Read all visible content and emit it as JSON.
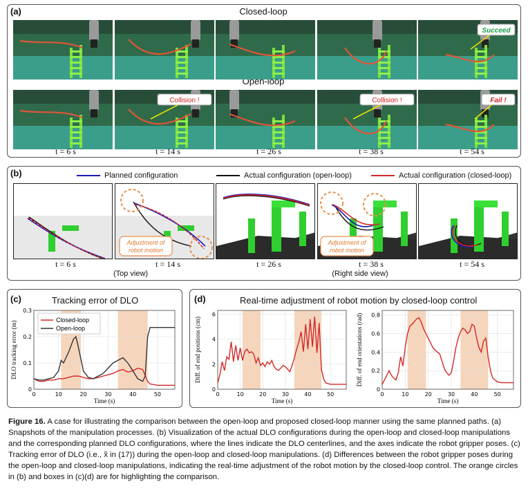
{
  "panel_a": {
    "label": "(a)",
    "row1_title": "Closed-loop",
    "row2_title": "Open-loop",
    "succeed": "Succeed",
    "collision": "Collision !",
    "fail": "Fail !",
    "times": [
      "t = 6 s",
      "t = 14 s",
      "t = 26 s",
      "t = 38 s",
      "t = 54 s"
    ]
  },
  "panel_b": {
    "label": "(b)",
    "legend": [
      "Planned configuration",
      "Actual configuration (open-loop)",
      "Actual configuration (closed-loop)"
    ],
    "colors": {
      "planned": "#1a1ab8",
      "open": "#111111",
      "closed": "#d62728"
    },
    "annotation": "Adjustment of robot motion",
    "times": [
      "t = 6 s",
      "t = 14 s",
      "t = 26 s",
      "t = 38 s",
      "t = 54 s"
    ],
    "top_view": "(Top view)",
    "side_view": "(Right side view)"
  },
  "panel_c": {
    "label": "(c)",
    "title": "Tracking error of DLO"
  },
  "panel_d": {
    "label": "(d)",
    "title": "Real-time adjustment of robot motion by closed-loop control"
  },
  "caption": {
    "fig": "Figure 16.",
    "text": "A case for illustrating the comparison between the open-loop and proposed closed-loop manner using the same planned paths. (a) Snapshots of the manipulation processes. (b) Visualization of the actual DLO configurations during the open-loop and closed-loop manipulations and the corresponding planned DLO configurations, where the lines indicate the DLO centerlines, and the axes indicate the robot gripper poses. (c) Tracking error of DLO (i.e., x̃ in (17)) during the open-loop and closed-loop manipulations. (d) Differences between the robot gripper poses during the open-loop and closed-loop manipulations, indicating the real-time adjustment of the robot motion by the closed-loop control. The orange circles in (b) and boxes in (c)(d) are for highlighting the comparison."
  },
  "chart_data": [
    {
      "type": "line",
      "xlabel": "Time (s)",
      "ylabel": "DLO tracking error (m)",
      "xlim": [
        0,
        57
      ],
      "ylim": [
        0,
        0.3
      ],
      "xticks": [
        0,
        10,
        20,
        30,
        40,
        50
      ],
      "yticks": [
        0.0,
        0.1,
        0.2,
        0.3
      ],
      "highlight": [
        [
          11,
          19
        ],
        [
          34,
          46
        ]
      ],
      "grid": true,
      "legend_position": "top-left",
      "series": [
        {
          "name": "Closed-loop",
          "color": "#d62728",
          "x": [
            0,
            2,
            4,
            6,
            8,
            10,
            12,
            14,
            16,
            18,
            20,
            22,
            24,
            26,
            28,
            30,
            32,
            34,
            36,
            38,
            40,
            42,
            44,
            46,
            47,
            50,
            57
          ],
          "y": [
            0.04,
            0.03,
            0.03,
            0.035,
            0.035,
            0.04,
            0.04,
            0.045,
            0.05,
            0.05,
            0.045,
            0.04,
            0.04,
            0.045,
            0.05,
            0.055,
            0.06,
            0.07,
            0.075,
            0.065,
            0.07,
            0.08,
            0.075,
            0.03,
            0.02,
            0.015,
            0.015
          ]
        },
        {
          "name": "Open-loop",
          "color": "#333333",
          "x": [
            0,
            2,
            4,
            6,
            8,
            10,
            11,
            12,
            14,
            16,
            17,
            18,
            20,
            22,
            24,
            26,
            28,
            30,
            32,
            34,
            36,
            38,
            40,
            42,
            44,
            45,
            46,
            47,
            50,
            57
          ],
          "y": [
            0.04,
            0.035,
            0.035,
            0.04,
            0.045,
            0.07,
            0.11,
            0.1,
            0.14,
            0.19,
            0.2,
            0.16,
            0.07,
            0.045,
            0.04,
            0.05,
            0.06,
            0.08,
            0.1,
            0.11,
            0.12,
            0.1,
            0.07,
            0.04,
            0.03,
            0.05,
            0.2,
            0.235,
            0.235,
            0.235
          ]
        }
      ]
    },
    {
      "type": "line",
      "xlabel": "Time (s)",
      "ylabel": "Diff. of end positions (cm)",
      "xlim": [
        0,
        57
      ],
      "ylim": [
        0,
        6.3
      ],
      "xticks": [
        0,
        10,
        20,
        30,
        40,
        50
      ],
      "yticks": [
        0,
        2,
        4,
        6
      ],
      "highlight": [
        [
          11,
          19
        ],
        [
          34,
          46
        ]
      ],
      "grid": true,
      "series": [
        {
          "name": "",
          "color": "#d62728",
          "x": [
            0,
            1,
            2,
            3,
            4,
            5,
            6,
            7,
            8,
            9,
            10,
            11,
            12,
            13,
            14,
            15,
            16,
            17,
            18,
            19,
            20,
            21,
            22,
            23,
            24,
            25,
            26,
            27,
            28,
            29,
            30,
            31,
            32,
            33,
            34,
            35,
            36,
            37,
            38,
            39,
            40,
            41,
            42,
            43,
            44,
            45,
            46,
            47,
            48,
            50,
            52,
            57
          ],
          "y": [
            0.5,
            1.2,
            2.2,
            1.5,
            2.6,
            2.4,
            3.8,
            2.2,
            3.5,
            2.3,
            3.3,
            2.3,
            3.0,
            3.2,
            2.9,
            3.0,
            2.8,
            2.1,
            2.5,
            1.9,
            2.1,
            1.8,
            2.2,
            2.0,
            2.3,
            1.8,
            1.6,
            1.5,
            1.7,
            1.9,
            1.8,
            1.6,
            1.4,
            1.9,
            2.5,
            3.2,
            3.8,
            4.6,
            3.0,
            5.2,
            3.2,
            5.6,
            3.4,
            5.8,
            2.9,
            5.3,
            1.6,
            0.8,
            0.5,
            0.4,
            0.4,
            0.4
          ]
        }
      ]
    },
    {
      "type": "line",
      "xlabel": "Time (s)",
      "ylabel": "Diff. of end orientations (rad)",
      "xlim": [
        0,
        57
      ],
      "ylim": [
        0,
        0.85
      ],
      "xticks": [
        0,
        10,
        20,
        30,
        40,
        50
      ],
      "yticks": [
        0.0,
        0.2,
        0.4,
        0.6,
        0.8
      ],
      "highlight": [
        [
          11,
          19
        ],
        [
          34,
          46
        ]
      ],
      "grid": true,
      "series": [
        {
          "name": "",
          "color": "#d62728",
          "x": [
            0,
            1,
            2,
            3,
            4,
            5,
            6,
            7,
            8,
            9,
            10,
            11,
            12,
            13,
            14,
            15,
            16,
            17,
            18,
            19,
            20,
            21,
            22,
            23,
            24,
            25,
            26,
            27,
            28,
            29,
            30,
            31,
            32,
            33,
            34,
            35,
            36,
            37,
            38,
            39,
            40,
            41,
            42,
            43,
            44,
            45,
            46,
            47,
            48,
            50,
            52,
            57
          ],
          "y": [
            0.05,
            0.1,
            0.15,
            0.2,
            0.15,
            0.12,
            0.1,
            0.18,
            0.35,
            0.25,
            0.45,
            0.6,
            0.68,
            0.7,
            0.73,
            0.76,
            0.77,
            0.72,
            0.65,
            0.6,
            0.55,
            0.5,
            0.45,
            0.42,
            0.4,
            0.38,
            0.3,
            0.22,
            0.18,
            0.15,
            0.18,
            0.3,
            0.45,
            0.55,
            0.62,
            0.66,
            0.64,
            0.6,
            0.62,
            0.7,
            0.68,
            0.55,
            0.45,
            0.4,
            0.52,
            0.55,
            0.35,
            0.2,
            0.12,
            0.08,
            0.07,
            0.07
          ]
        }
      ]
    }
  ]
}
